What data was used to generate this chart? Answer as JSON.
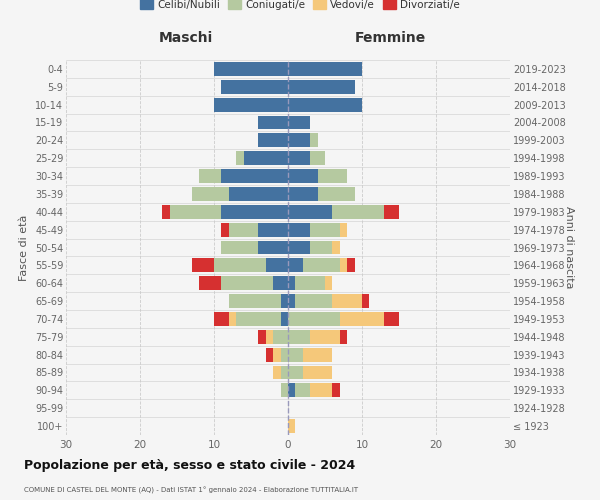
{
  "age_groups": [
    "0-4",
    "5-9",
    "10-14",
    "15-19",
    "20-24",
    "25-29",
    "30-34",
    "35-39",
    "40-44",
    "45-49",
    "50-54",
    "55-59",
    "60-64",
    "65-69",
    "70-74",
    "75-79",
    "80-84",
    "85-89",
    "90-94",
    "95-99",
    "100+"
  ],
  "birth_years": [
    "2019-2023",
    "2014-2018",
    "2009-2013",
    "2004-2008",
    "1999-2003",
    "1994-1998",
    "1989-1993",
    "1984-1988",
    "1979-1983",
    "1974-1978",
    "1969-1973",
    "1964-1968",
    "1959-1963",
    "1954-1958",
    "1949-1953",
    "1944-1948",
    "1939-1943",
    "1934-1938",
    "1929-1933",
    "1924-1928",
    "≤ 1923"
  ],
  "colors": {
    "celibi": "#4472a0",
    "coniugati": "#b5c9a0",
    "vedovi": "#f5c87a",
    "divorziati": "#d63030"
  },
  "males": {
    "celibi": [
      10,
      9,
      10,
      4,
      4,
      6,
      9,
      8,
      9,
      4,
      4,
      3,
      2,
      1,
      1,
      0,
      0,
      0,
      0,
      0,
      0
    ],
    "coniugati": [
      0,
      0,
      0,
      0,
      0,
      1,
      3,
      5,
      7,
      4,
      5,
      7,
      7,
      7,
      6,
      2,
      1,
      1,
      1,
      0,
      0
    ],
    "vedovi": [
      0,
      0,
      0,
      0,
      0,
      0,
      0,
      0,
      0,
      0,
      0,
      0,
      0,
      0,
      1,
      1,
      1,
      1,
      0,
      0,
      0
    ],
    "divorziati": [
      0,
      0,
      0,
      0,
      0,
      0,
      0,
      0,
      1,
      1,
      0,
      3,
      3,
      0,
      2,
      1,
      1,
      0,
      0,
      0,
      0
    ]
  },
  "females": {
    "nubili": [
      10,
      9,
      10,
      3,
      3,
      3,
      4,
      4,
      6,
      3,
      3,
      2,
      1,
      1,
      0,
      0,
      0,
      0,
      1,
      0,
      0
    ],
    "coniugate": [
      0,
      0,
      0,
      0,
      1,
      2,
      4,
      5,
      7,
      4,
      3,
      5,
      4,
      5,
      7,
      3,
      2,
      2,
      2,
      0,
      0
    ],
    "vedove": [
      0,
      0,
      0,
      0,
      0,
      0,
      0,
      0,
      0,
      1,
      1,
      1,
      1,
      4,
      6,
      4,
      4,
      4,
      3,
      0,
      1
    ],
    "divorziate": [
      0,
      0,
      0,
      0,
      0,
      0,
      0,
      0,
      2,
      0,
      0,
      1,
      0,
      1,
      2,
      1,
      0,
      0,
      1,
      0,
      0
    ]
  },
  "xlim": 30,
  "title1": "Popolazione per età, sesso e stato civile - 2024",
  "title2": "COMUNE DI CASTEL DEL MONTE (AQ) - Dati ISTAT 1° gennaio 2024 - Elaborazione TUTTITALIA.IT",
  "ylabel_left": "Fasce di età",
  "ylabel_right": "Anni di nascita",
  "xlabel_left": "Maschi",
  "xlabel_right": "Femmine",
  "bg_color": "#f5f5f5",
  "grid_color": "#cccccc"
}
